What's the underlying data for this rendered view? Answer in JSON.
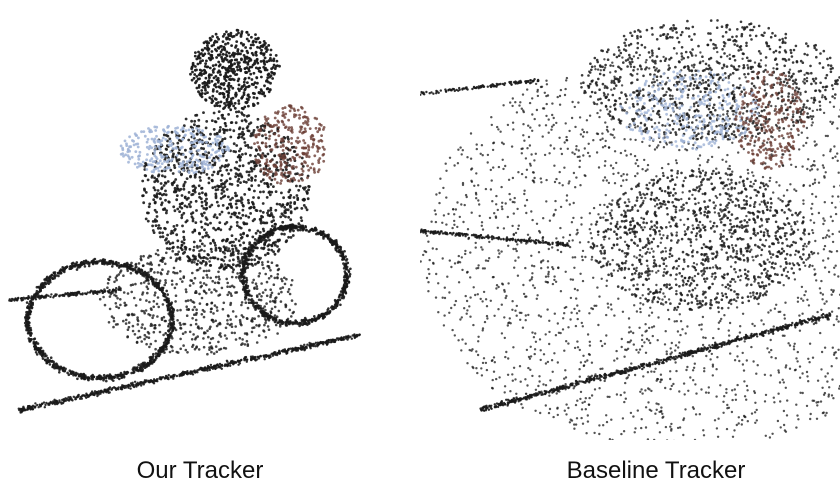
{
  "figure": {
    "panels": [
      {
        "caption": "Our Tracker",
        "content": "point-cloud"
      },
      {
        "caption": "Baseline Tracker",
        "content": "point-cloud"
      }
    ],
    "colors": {
      "background": "#ffffff",
      "point": "#1a1a1a",
      "highlight_blue": "#9fb3d6",
      "highlight_brown": "#6b3f36",
      "caption_text": "#111111"
    }
  }
}
